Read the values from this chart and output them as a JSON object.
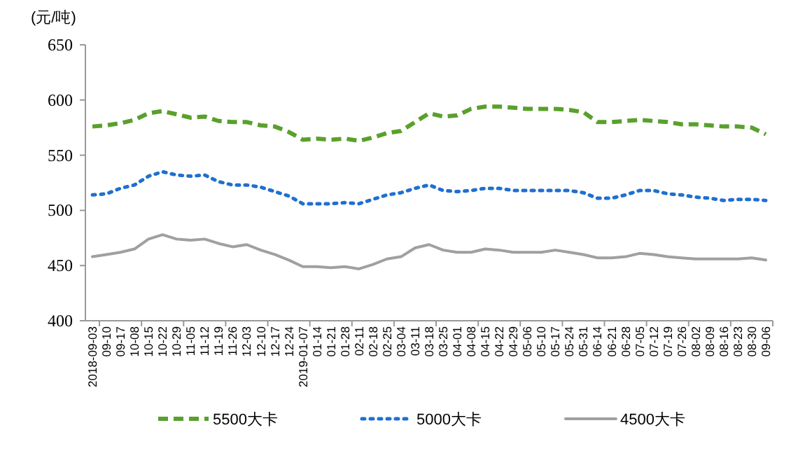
{
  "chart_data": {
    "type": "line",
    "ylabel": "(元/吨)",
    "ylim": [
      400,
      650
    ],
    "yticks": [
      400,
      450,
      500,
      550,
      600,
      650
    ],
    "legend": "bottom",
    "categories": [
      "2018-09-03",
      "09-10",
      "09-17",
      "10-08",
      "10-15",
      "10-22",
      "10-29",
      "11-05",
      "11-12",
      "11-19",
      "11-26",
      "12-03",
      "12-10",
      "12-17",
      "12-24",
      "2019-01-07",
      "01-14",
      "01-21",
      "01-28",
      "02-11",
      "02-18",
      "02-25",
      "03-04",
      "03-11",
      "03-18",
      "03-25",
      "04-01",
      "04-08",
      "04-15",
      "04-22",
      "04-29",
      "05-06",
      "05-10",
      "05-17",
      "05-24",
      "05-31",
      "06-14",
      "06-21",
      "06-28",
      "07-05",
      "07-12",
      "07-19",
      "07-26",
      "08-02",
      "08-09",
      "08-16",
      "08-23",
      "08-30",
      "09-06"
    ],
    "series": [
      {
        "name": "5500大卡",
        "color": "#5aa02c",
        "line_style": "dashed",
        "values": [
          576,
          577,
          579,
          582,
          588,
          590,
          587,
          584,
          585,
          581,
          580,
          580,
          577,
          576,
          571,
          564,
          565,
          564,
          565,
          563,
          566,
          570,
          572,
          580,
          588,
          585,
          586,
          592,
          594,
          594,
          593,
          592,
          592,
          592,
          591,
          589,
          580,
          580,
          581,
          582,
          581,
          580,
          578,
          578,
          577,
          576,
          576,
          575,
          569
        ]
      },
      {
        "name": "5000大卡",
        "color": "#1f6fd0",
        "line_style": "dotted",
        "values": [
          514,
          515,
          520,
          523,
          531,
          535,
          532,
          531,
          532,
          526,
          523,
          523,
          521,
          517,
          513,
          506,
          506,
          506,
          507,
          506,
          510,
          514,
          516,
          520,
          523,
          518,
          517,
          518,
          520,
          520,
          518,
          518,
          518,
          518,
          518,
          516,
          511,
          511,
          514,
          518,
          518,
          515,
          514,
          512,
          511,
          509,
          510,
          510,
          509
        ]
      },
      {
        "name": "4500大卡",
        "color": "#a0a0a0",
        "line_style": "solid",
        "values": [
          458,
          460,
          462,
          465,
          474,
          478,
          474,
          473,
          474,
          470,
          467,
          469,
          464,
          460,
          455,
          449,
          449,
          448,
          449,
          447,
          451,
          456,
          458,
          466,
          469,
          464,
          462,
          462,
          465,
          464,
          462,
          462,
          462,
          464,
          462,
          460,
          457,
          457,
          458,
          461,
          460,
          458,
          457,
          456,
          456,
          456,
          456,
          457,
          455
        ]
      }
    ]
  }
}
